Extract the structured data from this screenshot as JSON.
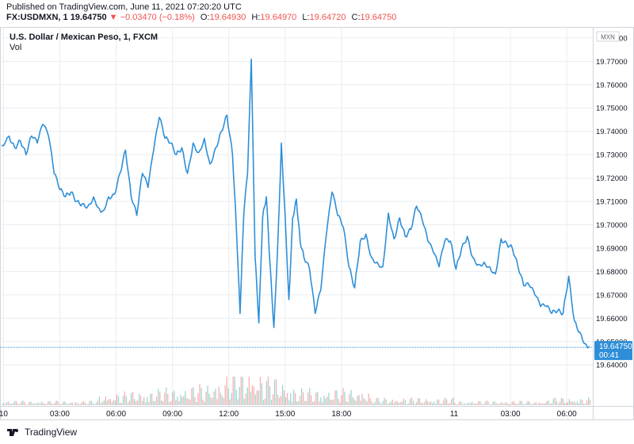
{
  "header": {
    "published": "Published on TradingView.com, June 11, 2021 07:20:20 UTC",
    "symbol": "FX:USDMXN, 1",
    "last": "19.64750",
    "change": "−0.03470 (−0.18%)",
    "open_key": "O:",
    "open": "19.64930",
    "high_key": "H:",
    "high": "19.64970",
    "low_key": "L:",
    "low": "19.64720",
    "close_key": "C:",
    "close": "19.64750"
  },
  "colors": {
    "line": "#2e8fd8",
    "down": "#ef5350",
    "up": "#26a69a",
    "badge": "#2e8fd8",
    "grid": "#e9ecf0"
  },
  "footer": {
    "brand": "TradingView",
    "logo_icon": "tradingview-logo-icon"
  },
  "chart_data": {
    "type": "line",
    "title": "U.S. Dollar / Mexican Peso, 1, FXCM",
    "volume_label": "Vol",
    "currency_label": "MXN",
    "y_ticks": [
      "19.78000",
      "19.77000",
      "19.76000",
      "19.75000",
      "19.74000",
      "19.73000",
      "19.72000",
      "19.71000",
      "19.70000",
      "19.69000",
      "19.68000",
      "19.67000",
      "19.66000",
      "19.65000",
      "19.64000"
    ],
    "ylim": [
      19.636,
      19.782
    ],
    "x_tick_labels": [
      "10",
      "03:00",
      "06:00",
      "09:00",
      "12:00",
      "15:00",
      "18:00",
      "11",
      "03:00",
      "06:00"
    ],
    "x_tick_hours": [
      0,
      3,
      6,
      9,
      12,
      15,
      18,
      24,
      27,
      30
    ],
    "xlim_hours": [
      -0.1,
      31.3
    ],
    "last_price_label": "19.64750",
    "last_price_time": "00:41",
    "last_price": 19.6475,
    "series": [
      {
        "values_hours": [
          -0.1,
          0.3,
          0.6,
          0.9,
          1.2,
          1.5,
          1.8,
          2.1,
          2.4,
          2.7,
          3.0,
          3.3,
          3.6,
          3.9,
          4.2,
          4.5,
          4.8,
          5.1,
          5.3,
          5.6,
          5.9,
          6.2,
          6.5,
          6.8,
          7.1,
          7.4,
          7.7,
          8.0,
          8.3,
          8.6,
          8.9,
          9.2,
          9.5,
          9.8,
          10.1,
          10.4,
          10.7,
          11.0,
          11.3,
          11.6,
          11.9,
          12.2,
          12.4,
          12.6,
          12.8,
          13.0,
          13.2,
          13.4,
          13.6,
          13.8,
          14.0,
          14.2,
          14.4,
          14.6,
          14.8,
          15.0,
          15.2,
          15.4,
          15.6,
          15.8,
          16.0,
          16.3,
          16.6,
          16.9,
          17.2,
          17.5,
          17.8,
          18.1,
          18.4,
          18.7,
          19.0,
          19.3,
          19.6,
          19.9,
          20.2,
          20.5,
          20.8,
          21.1,
          21.4,
          21.7,
          22.0,
          22.3,
          22.6,
          22.9,
          23.2,
          23.5,
          23.8,
          24.1,
          24.4,
          24.7,
          25.0,
          25.3,
          25.6,
          25.9,
          26.2,
          26.5,
          26.8,
          27.1,
          27.4,
          27.7,
          28.0,
          28.3,
          28.6,
          28.9,
          29.2,
          29.5,
          29.8,
          30.1,
          30.4,
          30.7,
          31.0,
          31.2
        ],
        "values": [
          19.734,
          19.738,
          19.733,
          19.736,
          19.73,
          19.738,
          19.735,
          19.743,
          19.738,
          19.722,
          19.715,
          19.712,
          19.714,
          19.71,
          19.709,
          19.708,
          19.712,
          19.707,
          19.706,
          19.712,
          19.713,
          19.722,
          19.732,
          19.712,
          19.704,
          19.722,
          19.716,
          19.732,
          19.746,
          19.737,
          19.735,
          19.73,
          19.733,
          19.722,
          19.735,
          19.731,
          19.737,
          19.726,
          19.733,
          19.74,
          19.747,
          19.73,
          19.699,
          19.662,
          19.705,
          19.722,
          19.771,
          19.686,
          19.658,
          19.703,
          19.712,
          19.683,
          19.656,
          19.69,
          19.735,
          19.704,
          19.668,
          19.703,
          19.711,
          19.693,
          19.686,
          19.681,
          19.662,
          19.672,
          19.696,
          19.714,
          19.704,
          19.699,
          19.682,
          19.673,
          19.693,
          19.696,
          19.686,
          19.684,
          19.682,
          19.705,
          19.694,
          19.703,
          19.695,
          19.698,
          19.708,
          19.702,
          19.693,
          19.688,
          19.682,
          19.693,
          19.693,
          19.681,
          19.69,
          19.695,
          19.686,
          19.683,
          19.684,
          19.682,
          19.679,
          19.694,
          19.692,
          19.69,
          19.682,
          19.674,
          19.674,
          19.67,
          19.665,
          19.665,
          19.662,
          19.663,
          19.662,
          19.678,
          19.659,
          19.654,
          19.649,
          19.648
        ]
      }
    ]
  }
}
